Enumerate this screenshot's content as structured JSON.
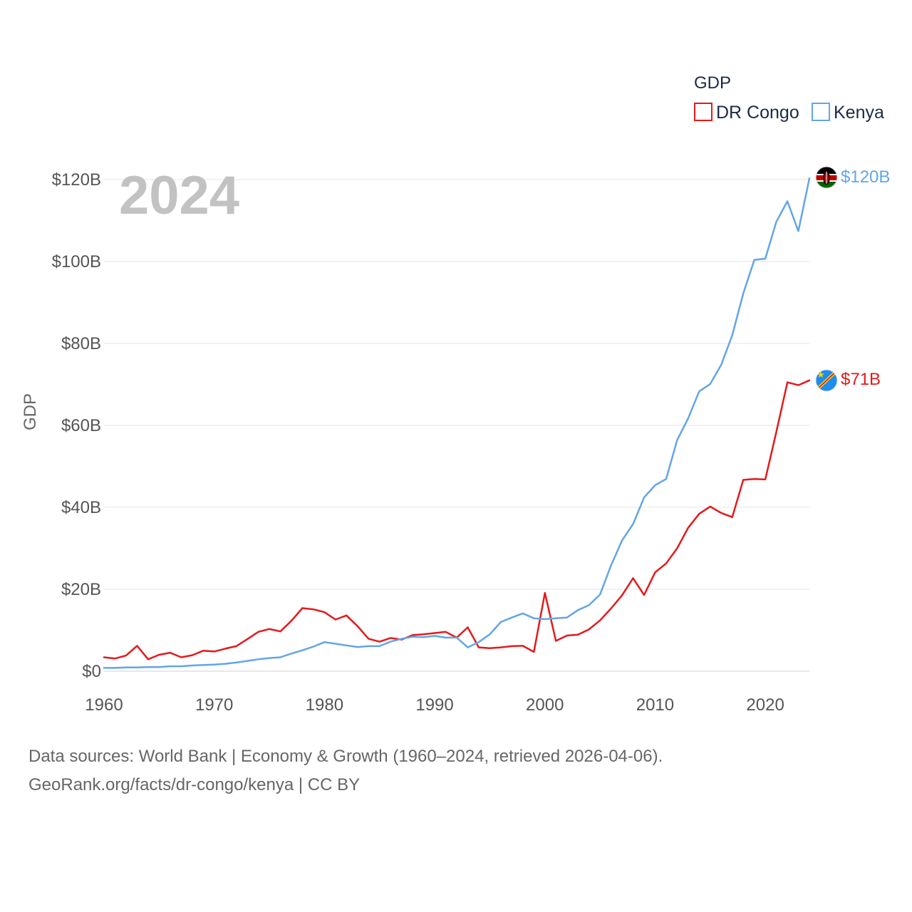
{
  "chart_data": {
    "type": "line",
    "year_label": "2024",
    "ylabel": "GDP",
    "legend_title": "GDP",
    "legend_position": "top-right",
    "x_ticks": [
      "1960",
      "1970",
      "1980",
      "1990",
      "2000",
      "2010",
      "2020"
    ],
    "x_tick_values": [
      1960,
      1970,
      1980,
      1990,
      2000,
      2010,
      2020
    ],
    "xlim": [
      1960,
      2024
    ],
    "y_ticks": [
      "$0",
      "$20B",
      "$40B",
      "$60B",
      "$80B",
      "$100B",
      "$120B"
    ],
    "y_tick_values": [
      0,
      20,
      40,
      60,
      80,
      100,
      120
    ],
    "ylim": [
      0,
      120
    ],
    "units": "billions USD",
    "grid": true,
    "series": [
      {
        "name": "DR Congo",
        "color": "#e41a1c",
        "end_label": "$71B",
        "x": [
          1960,
          1961,
          1962,
          1963,
          1964,
          1965,
          1966,
          1967,
          1968,
          1969,
          1970,
          1971,
          1972,
          1973,
          1974,
          1975,
          1976,
          1977,
          1978,
          1979,
          1980,
          1981,
          1982,
          1983,
          1984,
          1985,
          1986,
          1987,
          1988,
          1989,
          1990,
          1991,
          1992,
          1993,
          1994,
          1995,
          1996,
          1997,
          1998,
          1999,
          2000,
          2001,
          2002,
          2003,
          2004,
          2005,
          2006,
          2007,
          2008,
          2009,
          2010,
          2011,
          2012,
          2013,
          2014,
          2015,
          2016,
          2017,
          2018,
          2019,
          2020,
          2021,
          2022,
          2023,
          2024
        ],
        "values": [
          3.4,
          3.1,
          3.8,
          6.2,
          2.9,
          4.0,
          4.5,
          3.4,
          3.9,
          5.0,
          4.8,
          5.5,
          6.1,
          7.8,
          9.6,
          10.3,
          9.7,
          12.3,
          15.4,
          15.1,
          14.4,
          12.6,
          13.6,
          11.0,
          7.9,
          7.2,
          8.1,
          7.7,
          8.8,
          9.0,
          9.3,
          9.6,
          8.2,
          10.7,
          5.8,
          5.6,
          5.8,
          6.1,
          6.2,
          4.7,
          19.1,
          7.4,
          8.7,
          8.9,
          10.2,
          12.4,
          15.3,
          18.5,
          22.7,
          18.6,
          24.1,
          26.3,
          30.0,
          35.0,
          38.4,
          40.2,
          38.6,
          37.6,
          46.7,
          46.9,
          46.8,
          58.4,
          70.5,
          69.8,
          71.0
        ]
      },
      {
        "name": "Kenya",
        "color": "#62a6e6",
        "end_label": "$120B",
        "x": [
          1960,
          1961,
          1962,
          1963,
          1964,
          1965,
          1966,
          1967,
          1968,
          1969,
          1970,
          1971,
          1972,
          1973,
          1974,
          1975,
          1976,
          1977,
          1978,
          1979,
          1980,
          1981,
          1982,
          1983,
          1984,
          1985,
          1986,
          1987,
          1988,
          1989,
          1990,
          1991,
          1992,
          1993,
          1994,
          1995,
          1996,
          1997,
          1998,
          1999,
          2000,
          2001,
          2002,
          2003,
          2004,
          2005,
          2006,
          2007,
          2008,
          2009,
          2010,
          2011,
          2012,
          2013,
          2014,
          2015,
          2016,
          2017,
          2018,
          2019,
          2020,
          2021,
          2022,
          2023,
          2024
        ],
        "values": [
          0.8,
          0.8,
          0.9,
          0.9,
          1.0,
          1.0,
          1.2,
          1.2,
          1.4,
          1.5,
          1.6,
          1.8,
          2.1,
          2.5,
          2.9,
          3.2,
          3.4,
          4.3,
          5.1,
          6.0,
          7.1,
          6.7,
          6.3,
          5.9,
          6.1,
          6.1,
          7.2,
          7.9,
          8.4,
          8.3,
          8.6,
          8.2,
          8.2,
          5.8,
          7.1,
          9.0,
          12.0,
          13.1,
          14.1,
          12.9,
          12.7,
          12.9,
          13.1,
          14.9,
          16.1,
          18.7,
          25.8,
          31.9,
          35.9,
          42.4,
          45.4,
          46.9,
          56.4,
          61.7,
          68.3,
          70.1,
          74.8,
          82.0,
          92.2,
          100.4,
          100.7,
          109.7,
          114.7,
          107.4,
          120.3
        ]
      }
    ]
  },
  "footer": {
    "line1": "Data sources: World Bank | Economy & Growth (1960–2024, retrieved 2026-04-06).",
    "line2": "GeoRank.org/facts/dr-congo/kenya | CC BY"
  }
}
